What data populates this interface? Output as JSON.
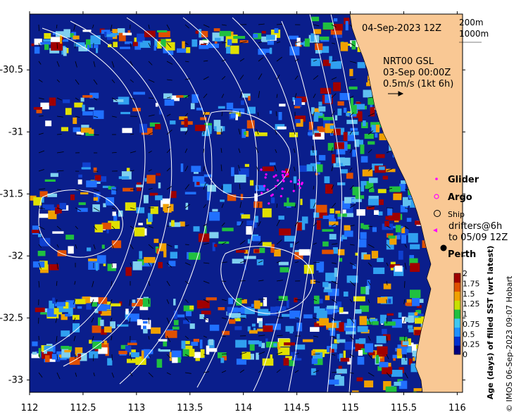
{
  "map": {
    "title": "04-Sep-2023 12Z",
    "depth_contours": [
      "200m",
      "1000m"
    ],
    "current_source": "NRT00 GSL",
    "current_time": "03-Sep 00:00Z",
    "current_scale": "0.5m/s (1kt 6h)",
    "legend": {
      "glider": "Glider",
      "argo": "Argo",
      "ship": "Ship",
      "drifters_line1": "drifters@6h",
      "drifters_line2": "to 05/09 12Z"
    },
    "city": "Perth",
    "colorbar": {
      "label": "Age (days) of filled SST (wrt latest)",
      "ticks": [
        "2",
        "1.75",
        "1.5",
        "1.25",
        "1",
        "0.75",
        "0.5",
        "0.25",
        "0"
      ],
      "colors": [
        "#000080",
        "#0030d0",
        "#1e90ff",
        "#40c8f0",
        "#20c040",
        "#c8e000",
        "#f0a000",
        "#e05000",
        "#a00000"
      ]
    },
    "x_ticks": [
      "112",
      "112.5",
      "113",
      "113.5",
      "114",
      "114.5",
      "115",
      "115.5",
      "116"
    ],
    "y_ticks": [
      "-30.5",
      "-31",
      "-31.5",
      "-32",
      "-32.5",
      "-33"
    ],
    "credit": "© IMOS 06-Sep-2023 09:07 Hobart",
    "colors": {
      "ocean": "#0a1e8c",
      "land": "#f9c894",
      "contour": "#ffffff",
      "glider": "#ff00ff",
      "argo": "#ff00ff"
    }
  }
}
